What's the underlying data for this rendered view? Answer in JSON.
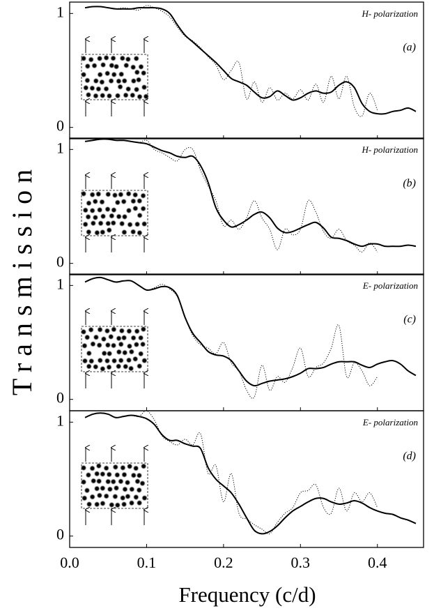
{
  "ylabel": "Transmission",
  "chart_data": [
    {
      "type": "line",
      "annotation": "H- polarization",
      "panel_label": "(a)",
      "x": [
        0.02,
        0.03,
        0.04,
        0.05,
        0.06,
        0.07,
        0.08,
        0.09,
        0.1,
        0.11,
        0.12,
        0.13,
        0.14,
        0.15,
        0.16,
        0.17,
        0.18,
        0.19,
        0.2,
        0.21,
        0.22,
        0.23,
        0.24,
        0.25,
        0.26,
        0.27,
        0.28,
        0.29,
        0.3,
        0.31,
        0.32,
        0.33,
        0.34,
        0.35,
        0.36,
        0.37,
        0.38,
        0.39,
        0.4,
        0.41,
        0.42,
        0.43,
        0.44,
        0.45
      ],
      "xlim": [
        0,
        0.46
      ],
      "ylim": [
        -0.1,
        1.1
      ],
      "yticks": [
        0,
        1
      ],
      "series": [
        {
          "color": "#000000",
          "style": "solid",
          "values": [
            1.05,
            1.06,
            1.06,
            1.05,
            1.04,
            1.04,
            1.04,
            1.05,
            1.05,
            1.05,
            1.04,
            1.0,
            0.9,
            0.81,
            0.75,
            0.69,
            0.63,
            0.57,
            0.5,
            0.43,
            0.4,
            0.37,
            0.31,
            0.26,
            0.27,
            0.32,
            0.28,
            0.24,
            0.26,
            0.3,
            0.32,
            0.3,
            0.31,
            0.37,
            0.4,
            0.35,
            0.21,
            0.14,
            0.12,
            0.12,
            0.14,
            0.15,
            0.17,
            0.14
          ]
        },
        {
          "color": "#000000",
          "style": "dotted",
          "values": [
            1.05,
            1.06,
            1.06,
            1.05,
            1.04,
            1.05,
            1.04,
            1.03,
            1.07,
            1.05,
            1.02,
            0.97,
            0.88,
            0.8,
            0.76,
            0.7,
            0.62,
            0.55,
            0.42,
            0.5,
            0.57,
            0.25,
            0.4,
            0.22,
            0.35,
            0.24,
            0.3,
            0.25,
            0.33,
            0.24,
            0.38,
            0.22,
            0.45,
            0.25,
            0.45,
            0.18,
            0.1,
            0.3,
            0.15,
            null,
            null,
            null,
            null,
            null
          ]
        }
      ]
    },
    {
      "type": "line",
      "annotation": "H- polarization",
      "panel_label": "(b)",
      "x": [
        0.02,
        0.03,
        0.04,
        0.05,
        0.06,
        0.07,
        0.08,
        0.09,
        0.1,
        0.11,
        0.12,
        0.13,
        0.14,
        0.15,
        0.16,
        0.17,
        0.18,
        0.19,
        0.2,
        0.21,
        0.22,
        0.23,
        0.24,
        0.25,
        0.26,
        0.27,
        0.28,
        0.29,
        0.3,
        0.31,
        0.32,
        0.33,
        0.34,
        0.35,
        0.36,
        0.37,
        0.38,
        0.39,
        0.4,
        0.41,
        0.42,
        0.43,
        0.44,
        0.45
      ],
      "xlim": [
        0,
        0.46
      ],
      "ylim": [
        -0.1,
        1.1
      ],
      "yticks": [
        0,
        1
      ],
      "series": [
        {
          "color": "#000000",
          "style": "solid",
          "values": [
            1.07,
            1.08,
            1.09,
            1.09,
            1.08,
            1.08,
            1.07,
            1.06,
            1.05,
            1.02,
            0.99,
            0.97,
            0.94,
            0.93,
            0.94,
            0.86,
            0.71,
            0.49,
            0.38,
            0.32,
            0.34,
            0.38,
            0.43,
            0.45,
            0.4,
            0.31,
            0.27,
            0.28,
            0.31,
            0.34,
            0.36,
            0.31,
            0.23,
            0.22,
            0.2,
            0.17,
            0.15,
            0.17,
            0.17,
            0.15,
            0.15,
            0.15,
            0.16,
            0.15
          ]
        },
        {
          "color": "#000000",
          "style": "dotted",
          "values": [
            1.07,
            1.08,
            1.09,
            1.09,
            1.08,
            1.08,
            1.07,
            1.06,
            1.08,
            1.0,
            0.97,
            0.93,
            0.9,
            1.0,
            1.0,
            0.82,
            0.68,
            0.55,
            0.33,
            0.38,
            0.3,
            0.4,
            0.55,
            0.4,
            0.3,
            0.12,
            0.3,
            0.25,
            0.3,
            0.55,
            0.45,
            0.28,
            0.22,
            0.3,
            0.2,
            0.16,
            0.1,
            0.18,
            0.1,
            null,
            null,
            null,
            null,
            null
          ]
        }
      ]
    },
    {
      "type": "line",
      "annotation": "E- polarization",
      "panel_label": "(c)",
      "x": [
        0.02,
        0.03,
        0.04,
        0.05,
        0.06,
        0.07,
        0.08,
        0.09,
        0.1,
        0.11,
        0.12,
        0.13,
        0.14,
        0.15,
        0.16,
        0.17,
        0.18,
        0.19,
        0.2,
        0.21,
        0.22,
        0.23,
        0.24,
        0.25,
        0.26,
        0.27,
        0.28,
        0.29,
        0.3,
        0.31,
        0.32,
        0.33,
        0.34,
        0.35,
        0.36,
        0.37,
        0.38,
        0.39,
        0.4,
        0.41,
        0.42,
        0.43,
        0.44,
        0.45
      ],
      "xlim": [
        0,
        0.46
      ],
      "ylim": [
        -0.1,
        1.1
      ],
      "yticks": [
        0,
        1
      ],
      "series": [
        {
          "color": "#000000",
          "style": "solid",
          "values": [
            1.03,
            1.06,
            1.07,
            1.05,
            1.03,
            1.04,
            1.04,
            1.0,
            0.96,
            0.97,
            0.99,
            0.98,
            0.91,
            0.72,
            0.58,
            0.5,
            0.42,
            0.39,
            0.38,
            0.34,
            0.25,
            0.16,
            0.12,
            0.14,
            0.16,
            0.17,
            0.18,
            0.2,
            0.23,
            0.27,
            0.27,
            0.28,
            0.31,
            0.33,
            0.33,
            0.33,
            0.3,
            0.28,
            0.31,
            0.33,
            0.34,
            0.31,
            0.25,
            0.21
          ]
        },
        {
          "color": "#000000",
          "style": "dotted",
          "values": [
            1.03,
            1.06,
            1.07,
            1.05,
            1.03,
            1.04,
            1.04,
            1.0,
            0.96,
            0.98,
            1.01,
            0.97,
            0.9,
            0.72,
            0.56,
            0.48,
            0.45,
            0.4,
            0.5,
            0.32,
            0.25,
            0.08,
            0.02,
            0.3,
            0.08,
            0.2,
            0.15,
            0.28,
            0.45,
            0.2,
            0.28,
            0.32,
            0.45,
            0.65,
            0.2,
            0.32,
            0.25,
            0.12,
            0.2,
            null,
            null,
            null,
            null,
            null
          ]
        }
      ]
    },
    {
      "type": "line",
      "annotation": "E- polarization",
      "panel_label": "(d)",
      "x": [
        0.02,
        0.03,
        0.04,
        0.05,
        0.06,
        0.07,
        0.08,
        0.09,
        0.1,
        0.11,
        0.12,
        0.13,
        0.14,
        0.15,
        0.16,
        0.17,
        0.18,
        0.19,
        0.2,
        0.21,
        0.22,
        0.23,
        0.24,
        0.25,
        0.26,
        0.27,
        0.28,
        0.29,
        0.3,
        0.31,
        0.32,
        0.33,
        0.34,
        0.35,
        0.36,
        0.37,
        0.38,
        0.39,
        0.4,
        0.41,
        0.42,
        0.43,
        0.44,
        0.45
      ],
      "xlim": [
        0,
        0.46
      ],
      "ylim": [
        -0.1,
        1.1
      ],
      "yticks": [
        0,
        1
      ],
      "xticks": [
        {
          "value": 0,
          "label": "0.0"
        },
        0.1,
        0.2,
        0.3,
        0.4
      ],
      "xlabel": "Frequency (c/d)",
      "series": [
        {
          "color": "#000000",
          "style": "solid",
          "values": [
            1.04,
            1.07,
            1.08,
            1.07,
            1.04,
            1.05,
            1.06,
            1.05,
            1.03,
            0.98,
            0.89,
            0.84,
            0.84,
            0.81,
            0.79,
            0.77,
            0.6,
            0.5,
            0.44,
            0.38,
            0.28,
            0.16,
            0.05,
            0.02,
            0.04,
            0.09,
            0.16,
            0.22,
            0.26,
            0.3,
            0.33,
            0.33,
            0.3,
            0.28,
            0.29,
            0.31,
            0.29,
            0.25,
            0.22,
            0.2,
            0.19,
            0.16,
            0.14,
            0.11
          ]
        },
        {
          "color": "#000000",
          "style": "dotted",
          "values": [
            1.04,
            1.07,
            1.08,
            1.07,
            1.04,
            1.05,
            1.06,
            1.05,
            1.1,
            1.02,
            0.88,
            0.83,
            0.8,
            0.85,
            0.8,
            0.9,
            0.55,
            0.62,
            0.3,
            0.55,
            0.2,
            0.15,
            0.1,
            0.06,
            0.02,
            0.12,
            0.2,
            0.25,
            0.38,
            0.4,
            0.45,
            0.25,
            0.2,
            0.42,
            0.22,
            0.38,
            0.3,
            0.38,
            0.25,
            null,
            null,
            null,
            null,
            null
          ]
        }
      ]
    }
  ]
}
